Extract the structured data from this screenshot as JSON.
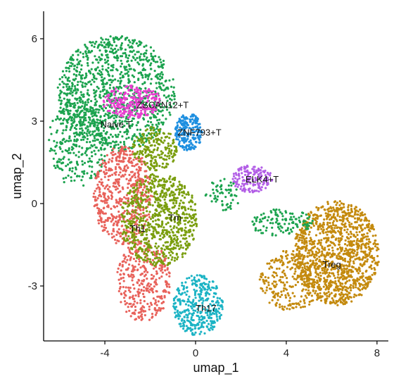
{
  "chart_data": {
    "type": "scatter",
    "xlabel": "umap_1",
    "ylabel": "umap_2",
    "xlim": [
      -6.7,
      8.5
    ],
    "ylim": [
      -5.0,
      7.0
    ],
    "x_ticks": [
      -4,
      0,
      4,
      8
    ],
    "x_tick_labels": [
      "-4",
      "0",
      "4",
      "8"
    ],
    "y_ticks": [
      6,
      3,
      0,
      -3
    ],
    "y_tick_labels": [
      "6",
      "3",
      "0",
      "-3"
    ],
    "grid": false,
    "legend": "none",
    "clusters": [
      {
        "label": "Naive T",
        "color": "#1ca34f",
        "label_pos": [
          -4.2,
          2.9
        ],
        "regions": [
          {
            "cx": -3.5,
            "cy": 4.0,
            "rx": 2.6,
            "ry": 2.1,
            "n": 1100
          },
          {
            "cx": -5.2,
            "cy": 2.2,
            "rx": 1.3,
            "ry": 1.6,
            "n": 300
          }
        ]
      },
      {
        "label": "ZSCAN12+T",
        "color": "#e83fcf",
        "label_pos": [
          -2.6,
          3.6
        ],
        "regions": [
          {
            "cx": -2.8,
            "cy": 3.7,
            "rx": 1.3,
            "ry": 0.6,
            "n": 250
          }
        ]
      },
      {
        "label": "ZNF793+T",
        "color": "#1e8fe0",
        "label_pos": [
          -0.8,
          2.6
        ],
        "regions": [
          {
            "cx": -0.3,
            "cy": 2.6,
            "rx": 0.6,
            "ry": 0.7,
            "n": 200
          }
        ]
      },
      {
        "label": "ELK4+T",
        "color": "#b25ee6",
        "label_pos": [
          2.2,
          0.9
        ],
        "regions": [
          {
            "cx": 2.5,
            "cy": 0.9,
            "rx": 0.9,
            "ry": 0.5,
            "n": 150
          }
        ]
      },
      {
        "label": "Th1",
        "color": "#e8625b",
        "label_pos": [
          -2.9,
          -0.9
        ],
        "regions": [
          {
            "cx": -3.2,
            "cy": 0.3,
            "rx": 1.3,
            "ry": 1.8,
            "n": 550
          },
          {
            "cx": -2.3,
            "cy": -2.8,
            "rx": 1.2,
            "ry": 1.5,
            "n": 350
          }
        ]
      },
      {
        "label": "Tm",
        "color": "#7a9e0e",
        "label_pos": [
          -1.2,
          -0.5
        ],
        "regions": [
          {
            "cx": -1.6,
            "cy": -0.6,
            "rx": 1.7,
            "ry": 1.7,
            "n": 750
          },
          {
            "cx": -1.8,
            "cy": 2.0,
            "rx": 1.0,
            "ry": 0.8,
            "n": 200
          }
        ]
      },
      {
        "label": "Th17",
        "color": "#1bb3c4",
        "label_pos": [
          0.0,
          -3.8
        ],
        "regions": [
          {
            "cx": 0.1,
            "cy": -3.7,
            "rx": 1.1,
            "ry": 1.1,
            "n": 350
          }
        ]
      },
      {
        "label": "Treg",
        "color": "#c48a0e",
        "label_pos": [
          5.6,
          -2.2
        ],
        "regions": [
          {
            "cx": 6.2,
            "cy": -1.8,
            "rx": 1.9,
            "ry": 1.9,
            "n": 1200
          },
          {
            "cx": 4.2,
            "cy": -2.8,
            "rx": 1.4,
            "ry": 1.1,
            "n": 250
          }
        ]
      },
      {
        "label": "",
        "color": "#1ca34f",
        "regions": [
          {
            "cx": 3.8,
            "cy": -0.7,
            "rx": 1.4,
            "ry": 0.5,
            "n": 120
          },
          {
            "cx": 1.2,
            "cy": 0.3,
            "rx": 0.8,
            "ry": 0.6,
            "n": 60
          }
        ]
      }
    ]
  }
}
